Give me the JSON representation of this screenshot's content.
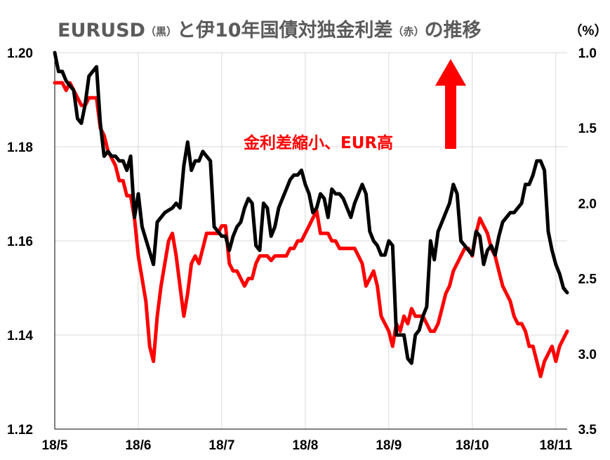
{
  "colors": {
    "eurusd": "#000000",
    "spread": "#ff0000",
    "grid": "#d9d9d9",
    "title": "#5b5b5b",
    "annotation": "#ff0000",
    "arrow": "#ff0000"
  },
  "chart_data": {
    "type": "line",
    "title_parts": {
      "main1": "EURUSD",
      "paren1": "（黒）",
      "main2": "と伊10年国債対独金利差",
      "paren2": "（赤）",
      "main3": "の推移"
    },
    "right_unit": "（%）",
    "annotation": "金利差縮小、EUR高",
    "arrow_icon": "up-arrow-icon",
    "x_tick_labels": [
      "18/5",
      "18/6",
      "18/7",
      "18/8",
      "18/9",
      "18/10",
      "18/11"
    ],
    "x_tick_index": [
      0,
      22,
      44,
      66,
      88,
      110,
      132
    ],
    "n_points": 136,
    "left_axis": {
      "ticks": [
        "1.20",
        "1.18",
        "1.16",
        "1.14",
        "1.12"
      ],
      "ylim": [
        1.12,
        1.2
      ]
    },
    "right_axis": {
      "ticks": [
        "1.0",
        "1.5",
        "2.0",
        "2.5",
        "3.0",
        "3.5"
      ],
      "ylim": [
        1.0,
        3.5
      ],
      "inverted": true
    },
    "grid": true,
    "series": [
      {
        "axis": "left",
        "anchors": [
          [
            0,
            1.2
          ],
          [
            1,
            1.196
          ],
          [
            2,
            1.196
          ],
          [
            3,
            1.194
          ],
          [
            5,
            1.192
          ],
          [
            6,
            1.186
          ],
          [
            7,
            1.185
          ],
          [
            8,
            1.189
          ],
          [
            9,
            1.195
          ],
          [
            10,
            1.196
          ],
          [
            11,
            1.197
          ],
          [
            12,
            1.185
          ],
          [
            13,
            1.178
          ],
          [
            14,
            1.179
          ],
          [
            15,
            1.178
          ],
          [
            16,
            1.178
          ],
          [
            17,
            1.177
          ],
          [
            18,
            1.177
          ],
          [
            19,
            1.175
          ],
          [
            20,
            1.178
          ],
          [
            21,
            1.165
          ],
          [
            22,
            1.17
          ],
          [
            23,
            1.163
          ],
          [
            26,
            1.155
          ],
          [
            27,
            1.164
          ],
          [
            28,
            1.165
          ],
          [
            29,
            1.166
          ],
          [
            31,
            1.167
          ],
          [
            32,
            1.168
          ],
          [
            33,
            1.167
          ],
          [
            34,
            1.176
          ],
          [
            35,
            1.181
          ],
          [
            36,
            1.175
          ],
          [
            37,
            1.177
          ],
          [
            38,
            1.177
          ],
          [
            39,
            1.179
          ],
          [
            40,
            1.178
          ],
          [
            41,
            1.177
          ],
          [
            42,
            1.163
          ],
          [
            43,
            1.162
          ],
          [
            44,
            1.161
          ],
          [
            45,
            1.161
          ],
          [
            46,
            1.158
          ],
          [
            47,
            1.161
          ],
          [
            48,
            1.163
          ],
          [
            49,
            1.164
          ],
          [
            50,
            1.167
          ],
          [
            51,
            1.169
          ],
          [
            52,
            1.168
          ],
          [
            53,
            1.159
          ],
          [
            54,
            1.158
          ],
          [
            55,
            1.168
          ],
          [
            56,
            1.167
          ],
          [
            57,
            1.161
          ],
          [
            58,
            1.163
          ],
          [
            59,
            1.167
          ],
          [
            60,
            1.169
          ],
          [
            61,
            1.171
          ],
          [
            62,
            1.173
          ],
          [
            63,
            1.174
          ],
          [
            64,
            1.174
          ],
          [
            65,
            1.175
          ],
          [
            66,
            1.172
          ],
          [
            67,
            1.17
          ],
          [
            68,
            1.166
          ],
          [
            69,
            1.167
          ],
          [
            70,
            1.17
          ],
          [
            71,
            1.169
          ],
          [
            72,
            1.165
          ],
          [
            73,
            1.171
          ],
          [
            74,
            1.17
          ],
          [
            75,
            1.17
          ],
          [
            76,
            1.169
          ],
          [
            77,
            1.167
          ],
          [
            78,
            1.165
          ],
          [
            79,
            1.168
          ],
          [
            80,
            1.17
          ],
          [
            81,
            1.172
          ],
          [
            82,
            1.17
          ],
          [
            83,
            1.162
          ],
          [
            84,
            1.16
          ],
          [
            85,
            1.159
          ],
          [
            86,
            1.157
          ],
          [
            87,
            1.157
          ],
          [
            88,
            1.16
          ],
          [
            89,
            1.159
          ],
          [
            90,
            1.14
          ],
          [
            91,
            1.14
          ],
          [
            92,
            1.14
          ],
          [
            93,
            1.135
          ],
          [
            94,
            1.134
          ],
          [
            95,
            1.14
          ],
          [
            96,
            1.141
          ],
          [
            97,
            1.144
          ],
          [
            98,
            1.146
          ],
          [
            99,
            1.16
          ],
          [
            100,
            1.156
          ],
          [
            101,
            1.162
          ],
          [
            102,
            1.164
          ],
          [
            103,
            1.166
          ],
          [
            104,
            1.168
          ],
          [
            105,
            1.172
          ],
          [
            106,
            1.17
          ],
          [
            107,
            1.16
          ],
          [
            108,
            1.159
          ],
          [
            109,
            1.158
          ],
          [
            110,
            1.157
          ],
          [
            111,
            1.162
          ],
          [
            112,
            1.161
          ],
          [
            113,
            1.155
          ],
          [
            114,
            1.158
          ],
          [
            115,
            1.159
          ],
          [
            116,
            1.157
          ],
          [
            117,
            1.161
          ],
          [
            118,
            1.164
          ],
          [
            119,
            1.165
          ],
          [
            120,
            1.166
          ],
          [
            121,
            1.166
          ],
          [
            122,
            1.167
          ],
          [
            123,
            1.168
          ],
          [
            124,
            1.172
          ],
          [
            125,
            1.172
          ],
          [
            126,
            1.174
          ],
          [
            127,
            1.177
          ],
          [
            128,
            1.177
          ],
          [
            129,
            1.175
          ],
          [
            130,
            1.162
          ],
          [
            131,
            1.158
          ],
          [
            132,
            1.155
          ],
          [
            133,
            1.153
          ],
          [
            134,
            1.15
          ],
          [
            135,
            1.149
          ]
        ]
      },
      {
        "axis": "right",
        "anchors": [
          [
            0,
            1.2
          ],
          [
            1,
            1.2
          ],
          [
            2,
            1.2
          ],
          [
            3,
            1.25
          ],
          [
            4,
            1.2
          ],
          [
            5,
            1.25
          ],
          [
            6,
            1.3
          ],
          [
            7,
            1.35
          ],
          [
            8,
            1.35
          ],
          [
            9,
            1.3
          ],
          [
            10,
            1.3
          ],
          [
            11,
            1.3
          ],
          [
            12,
            1.5
          ],
          [
            13,
            1.55
          ],
          [
            14,
            1.65
          ],
          [
            15,
            1.7
          ],
          [
            16,
            1.75
          ],
          [
            17,
            1.85
          ],
          [
            18,
            1.85
          ],
          [
            19,
            1.95
          ],
          [
            20,
            1.95
          ],
          [
            21,
            2.1
          ],
          [
            22,
            2.35
          ],
          [
            23,
            2.5
          ],
          [
            24,
            2.65
          ],
          [
            25,
            2.95
          ],
          [
            26,
            3.05
          ],
          [
            27,
            2.75
          ],
          [
            28,
            2.55
          ],
          [
            29,
            2.4
          ],
          [
            30,
            2.25
          ],
          [
            31,
            2.2
          ],
          [
            32,
            2.35
          ],
          [
            33,
            2.55
          ],
          [
            34,
            2.75
          ],
          [
            35,
            2.6
          ],
          [
            36,
            2.4
          ],
          [
            37,
            2.35
          ],
          [
            38,
            2.4
          ],
          [
            39,
            2.3
          ],
          [
            40,
            2.2
          ],
          [
            41,
            2.2
          ],
          [
            42,
            2.2
          ],
          [
            43,
            2.2
          ],
          [
            44,
            2.15
          ],
          [
            45,
            2.15
          ],
          [
            46,
            2.4
          ],
          [
            47,
            2.45
          ],
          [
            48,
            2.45
          ],
          [
            49,
            2.5
          ],
          [
            50,
            2.55
          ],
          [
            51,
            2.5
          ],
          [
            52,
            2.5
          ],
          [
            53,
            2.4
          ],
          [
            54,
            2.35
          ],
          [
            55,
            2.35
          ],
          [
            56,
            2.35
          ],
          [
            57,
            2.38
          ],
          [
            58,
            2.35
          ],
          [
            59,
            2.35
          ],
          [
            60,
            2.35
          ],
          [
            61,
            2.35
          ],
          [
            62,
            2.3
          ],
          [
            63,
            2.3
          ],
          [
            64,
            2.25
          ],
          [
            65,
            2.25
          ],
          [
            66,
            2.2
          ],
          [
            67,
            2.15
          ],
          [
            68,
            2.1
          ],
          [
            69,
            2.05
          ],
          [
            70,
            2.2
          ],
          [
            71,
            2.2
          ],
          [
            72,
            2.2
          ],
          [
            73,
            2.25
          ],
          [
            74,
            2.25
          ],
          [
            75,
            2.3
          ],
          [
            76,
            2.3
          ],
          [
            77,
            2.3
          ],
          [
            78,
            2.3
          ],
          [
            79,
            2.3
          ],
          [
            80,
            2.35
          ],
          [
            81,
            2.4
          ],
          [
            82,
            2.55
          ],
          [
            83,
            2.5
          ],
          [
            84,
            2.45
          ],
          [
            85,
            2.55
          ],
          [
            86,
            2.75
          ],
          [
            87,
            2.8
          ],
          [
            88,
            2.85
          ],
          [
            89,
            2.95
          ],
          [
            90,
            2.8
          ],
          [
            91,
            2.85
          ],
          [
            92,
            2.75
          ],
          [
            93,
            2.8
          ],
          [
            94,
            2.7
          ],
          [
            95,
            2.75
          ],
          [
            96,
            2.75
          ],
          [
            97,
            2.75
          ],
          [
            98,
            2.8
          ],
          [
            99,
            2.85
          ],
          [
            100,
            2.85
          ],
          [
            101,
            2.8
          ],
          [
            102,
            2.7
          ],
          [
            103,
            2.6
          ],
          [
            104,
            2.55
          ],
          [
            105,
            2.45
          ],
          [
            106,
            2.4
          ],
          [
            107,
            2.35
          ],
          [
            108,
            2.3
          ],
          [
            109,
            2.3
          ],
          [
            110,
            2.35
          ],
          [
            111,
            2.2
          ],
          [
            112,
            2.1
          ],
          [
            113,
            2.15
          ],
          [
            114,
            2.2
          ],
          [
            115,
            2.3
          ],
          [
            116,
            2.35
          ],
          [
            117,
            2.45
          ],
          [
            118,
            2.55
          ],
          [
            119,
            2.6
          ],
          [
            120,
            2.65
          ],
          [
            121,
            2.75
          ],
          [
            122,
            2.8
          ],
          [
            123,
            2.8
          ],
          [
            124,
            2.85
          ],
          [
            125,
            2.95
          ],
          [
            126,
            2.95
          ],
          [
            127,
            3.05
          ],
          [
            128,
            3.15
          ],
          [
            129,
            3.05
          ],
          [
            130,
            3.0
          ],
          [
            131,
            2.95
          ],
          [
            132,
            3.05
          ],
          [
            133,
            2.95
          ],
          [
            134,
            2.9
          ],
          [
            135,
            2.85
          ]
        ]
      }
    ]
  }
}
